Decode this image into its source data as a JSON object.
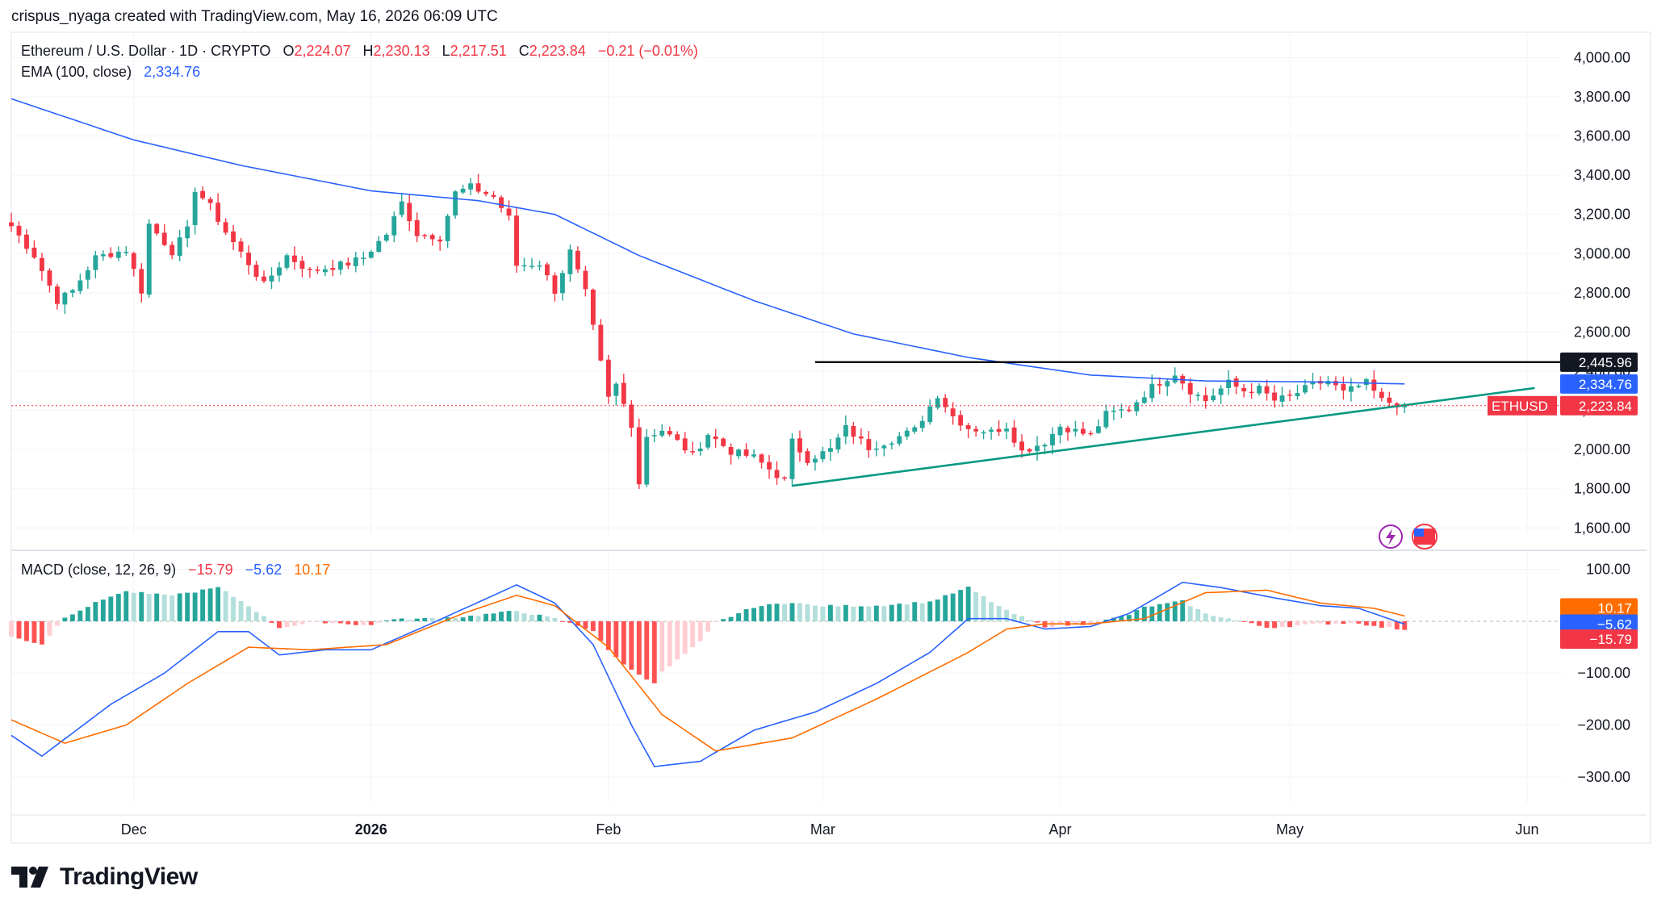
{
  "credit": "crispus_nyaga created with TradingView.com, May 16, 2026 06:09 UTC",
  "legend": {
    "symbol": "Ethereum / U.S. Dollar · 1D · CRYPTO",
    "o_label": "O",
    "o": "2,224.07",
    "h_label": "H",
    "h": "2,230.13",
    "l_label": "L",
    "l": "2,217.51",
    "c_label": "C",
    "c": "2,223.84",
    "change": "−0.21 (−0.01%)",
    "ema_label": "EMA (100, close)",
    "ema_value": "2,334.76"
  },
  "macd_legend": {
    "label": "MACD (close, 12, 26, 9)",
    "hist": "−15.79",
    "macd": "−5.62",
    "signal": "10.17"
  },
  "brand": "TradingView",
  "colors": {
    "up": "#26a69a",
    "down": "#f23645",
    "ema": "#2962ff",
    "macd": "#2962ff",
    "signal": "#ff6d00",
    "trendline": "#089981",
    "resistance": "#000000"
  },
  "chart_data": [
    {
      "type": "candlestick",
      "title": "Ethereum / U.S. Dollar · 1D · CRYPTO",
      "x_ticks": [
        "Dec",
        "2026",
        "Feb",
        "Mar",
        "Apr",
        "May",
        "Jun"
      ],
      "y_ticks": [
        "4,000.00",
        "3,800.00",
        "3,600.00",
        "3,400.00",
        "3,200.00",
        "3,000.00",
        "2,800.00",
        "2,600.00",
        "2,400.00",
        "2,200.00",
        "2,000.00",
        "1,800.00",
        "1,600.00"
      ],
      "ylim": [
        1560,
        4080
      ],
      "grid": true,
      "x_range": [
        "2025-11-15",
        "2026-06-05"
      ],
      "close_anchors": [
        [
          "2025-11-15",
          3140
        ],
        [
          "2025-11-18",
          2990
        ],
        [
          "2025-11-21",
          2760
        ],
        [
          "2025-11-23",
          2810
        ],
        [
          "2025-11-26",
          2980
        ],
        [
          "2025-11-30",
          3020
        ],
        [
          "2025-12-02",
          2810
        ],
        [
          "2025-12-03",
          3150
        ],
        [
          "2025-12-06",
          3010
        ],
        [
          "2025-12-08",
          3120
        ],
        [
          "2025-12-09",
          3330
        ],
        [
          "2025-12-11",
          3240
        ],
        [
          "2025-12-13",
          3110
        ],
        [
          "2025-12-16",
          2950
        ],
        [
          "2025-12-18",
          2840
        ],
        [
          "2025-12-21",
          2990
        ],
        [
          "2025-12-24",
          2910
        ],
        [
          "2025-12-29",
          2950
        ],
        [
          "2025-12-31",
          2980
        ],
        [
          "2026-01-03",
          3100
        ],
        [
          "2026-01-05",
          3260
        ],
        [
          "2026-01-07",
          3100
        ],
        [
          "2026-01-09",
          3090
        ],
        [
          "2026-01-10",
          3080
        ],
        [
          "2026-01-12",
          3310
        ],
        [
          "2026-01-14",
          3340
        ],
        [
          "2026-01-17",
          3290
        ],
        [
          "2026-01-19",
          3180
        ],
        [
          "2026-01-20",
          2940
        ],
        [
          "2026-01-23",
          2950
        ],
        [
          "2026-01-25",
          2810
        ],
        [
          "2026-01-27",
          3010
        ],
        [
          "2026-01-29",
          2800
        ],
        [
          "2026-01-31",
          2440
        ],
        [
          "2026-02-01",
          2260
        ],
        [
          "2026-02-02",
          2330
        ],
        [
          "2026-02-04",
          2130
        ],
        [
          "2026-02-05",
          1830
        ],
        [
          "2026-02-06",
          2070
        ],
        [
          "2026-02-08",
          2100
        ],
        [
          "2026-02-10",
          2040
        ],
        [
          "2026-02-12",
          1970
        ],
        [
          "2026-02-14",
          2080
        ],
        [
          "2026-02-17",
          1990
        ],
        [
          "2026-02-20",
          1960
        ],
        [
          "2026-02-24",
          1840
        ],
        [
          "2026-02-25",
          2040
        ],
        [
          "2026-02-27",
          1950
        ],
        [
          "2026-03-02",
          2000
        ],
        [
          "2026-03-04",
          2110
        ],
        [
          "2026-03-07",
          2010
        ],
        [
          "2026-03-10",
          2050
        ],
        [
          "2026-03-13",
          2100
        ],
        [
          "2026-03-16",
          2280
        ],
        [
          "2026-03-18",
          2170
        ],
        [
          "2026-03-20",
          2110
        ],
        [
          "2026-03-23",
          2090
        ],
        [
          "2026-03-25",
          2120
        ],
        [
          "2026-03-27",
          1990
        ],
        [
          "2026-03-30",
          2040
        ],
        [
          "2026-04-01",
          2120
        ],
        [
          "2026-04-05",
          2070
        ],
        [
          "2026-04-07",
          2180
        ],
        [
          "2026-04-10",
          2210
        ],
        [
          "2026-04-13",
          2320
        ],
        [
          "2026-04-16",
          2390
        ],
        [
          "2026-04-18",
          2300
        ],
        [
          "2026-04-20",
          2250
        ],
        [
          "2026-04-23",
          2340
        ],
        [
          "2026-04-25",
          2300
        ],
        [
          "2026-04-27",
          2310
        ],
        [
          "2026-04-29",
          2250
        ],
        [
          "2026-05-01",
          2270
        ],
        [
          "2026-05-04",
          2330
        ],
        [
          "2026-05-06",
          2350
        ],
        [
          "2026-05-08",
          2290
        ],
        [
          "2026-05-11",
          2340
        ],
        [
          "2026-05-13",
          2250
        ],
        [
          "2026-05-16",
          2223.84
        ]
      ],
      "ema_line": {
        "name": "EMA (100, close)",
        "points": [
          [
            "2025-11-15",
            3790
          ],
          [
            "2025-12-01",
            3580
          ],
          [
            "2025-12-15",
            3450
          ],
          [
            "2026-01-01",
            3320
          ],
          [
            "2026-01-15",
            3270
          ],
          [
            "2026-01-25",
            3200
          ],
          [
            "2026-02-05",
            2990
          ],
          [
            "2026-02-20",
            2760
          ],
          [
            "2026-03-05",
            2590
          ],
          [
            "2026-03-20",
            2470
          ],
          [
            "2026-04-05",
            2380
          ],
          [
            "2026-04-20",
            2350
          ],
          [
            "2026-05-05",
            2345
          ],
          [
            "2026-05-16",
            2334.76
          ]
        ]
      },
      "price_labels": [
        {
          "label": "",
          "value": "2,445.96"
        },
        {
          "label": "",
          "value": "2,334.76"
        },
        {
          "label": "ETHUSD",
          "value": "2,223.84"
        }
      ],
      "resistance_line": {
        "from": "2026-02-28",
        "to": "2026-06-05",
        "value": 2445.96
      },
      "support_trendline": {
        "from": [
          "2026-02-25",
          1815
        ],
        "to": [
          "2026-06-02",
          2314
        ]
      }
    },
    {
      "type": "line",
      "title": "MACD (close, 12, 26, 9)",
      "y_ticks": [
        "100.00",
        "−100.00",
        "−200.00",
        "−300.00"
      ],
      "ylim": [
        -350,
        115
      ],
      "series": [
        {
          "name": "MACD",
          "points": [
            [
              "2025-11-15",
              -220
            ],
            [
              "2025-11-19",
              -260
            ],
            [
              "2025-11-28",
              -160
            ],
            [
              "2025-12-05",
              -100
            ],
            [
              "2025-12-12",
              -20
            ],
            [
              "2025-12-16",
              -20
            ],
            [
              "2025-12-20",
              -65
            ],
            [
              "2025-12-26",
              -55
            ],
            [
              "2026-01-01",
              -55
            ],
            [
              "2026-01-08",
              -10
            ],
            [
              "2026-01-14",
              30
            ],
            [
              "2026-01-20",
              70
            ],
            [
              "2026-01-25",
              35
            ],
            [
              "2026-01-30",
              -45
            ],
            [
              "2026-02-04",
              -200
            ],
            [
              "2026-02-07",
              -280
            ],
            [
              "2026-02-13",
              -270
            ],
            [
              "2026-02-20",
              -210
            ],
            [
              "2026-02-28",
              -175
            ],
            [
              "2026-03-08",
              -120
            ],
            [
              "2026-03-15",
              -60
            ],
            [
              "2026-03-20",
              5
            ],
            [
              "2026-03-25",
              5
            ],
            [
              "2026-03-30",
              -15
            ],
            [
              "2026-04-05",
              -10
            ],
            [
              "2026-04-10",
              15
            ],
            [
              "2026-04-17",
              75
            ],
            [
              "2026-04-22",
              65
            ],
            [
              "2026-04-29",
              45
            ],
            [
              "2026-05-05",
              30
            ],
            [
              "2026-05-10",
              25
            ],
            [
              "2026-05-16",
              -5.62
            ]
          ]
        },
        {
          "name": "Signal",
          "points": [
            [
              "2025-11-15",
              -190
            ],
            [
              "2025-11-22",
              -235
            ],
            [
              "2025-11-30",
              -200
            ],
            [
              "2025-12-08",
              -120
            ],
            [
              "2025-12-16",
              -50
            ],
            [
              "2025-12-24",
              -55
            ],
            [
              "2026-01-03",
              -45
            ],
            [
              "2026-01-13",
              15
            ],
            [
              "2026-01-20",
              50
            ],
            [
              "2026-01-25",
              30
            ],
            [
              "2026-02-01",
              -50
            ],
            [
              "2026-02-08",
              -180
            ],
            [
              "2026-02-15",
              -250
            ],
            [
              "2026-02-25",
              -225
            ],
            [
              "2026-03-08",
              -150
            ],
            [
              "2026-03-20",
              -60
            ],
            [
              "2026-03-25",
              -15
            ],
            [
              "2026-03-30",
              -5
            ],
            [
              "2026-04-05",
              -5
            ],
            [
              "2026-04-12",
              5
            ],
            [
              "2026-04-20",
              55
            ],
            [
              "2026-04-28",
              60
            ],
            [
              "2026-05-05",
              35
            ],
            [
              "2026-05-12",
              25
            ],
            [
              "2026-05-16",
              10.17
            ]
          ]
        }
      ],
      "histogram_note": "MACD minus Signal",
      "price_labels": [
        {
          "name": "Signal",
          "value": "10.17"
        },
        {
          "name": "MACD",
          "value": "−5.62"
        },
        {
          "name": "Histogram",
          "value": "−15.79"
        }
      ]
    }
  ]
}
